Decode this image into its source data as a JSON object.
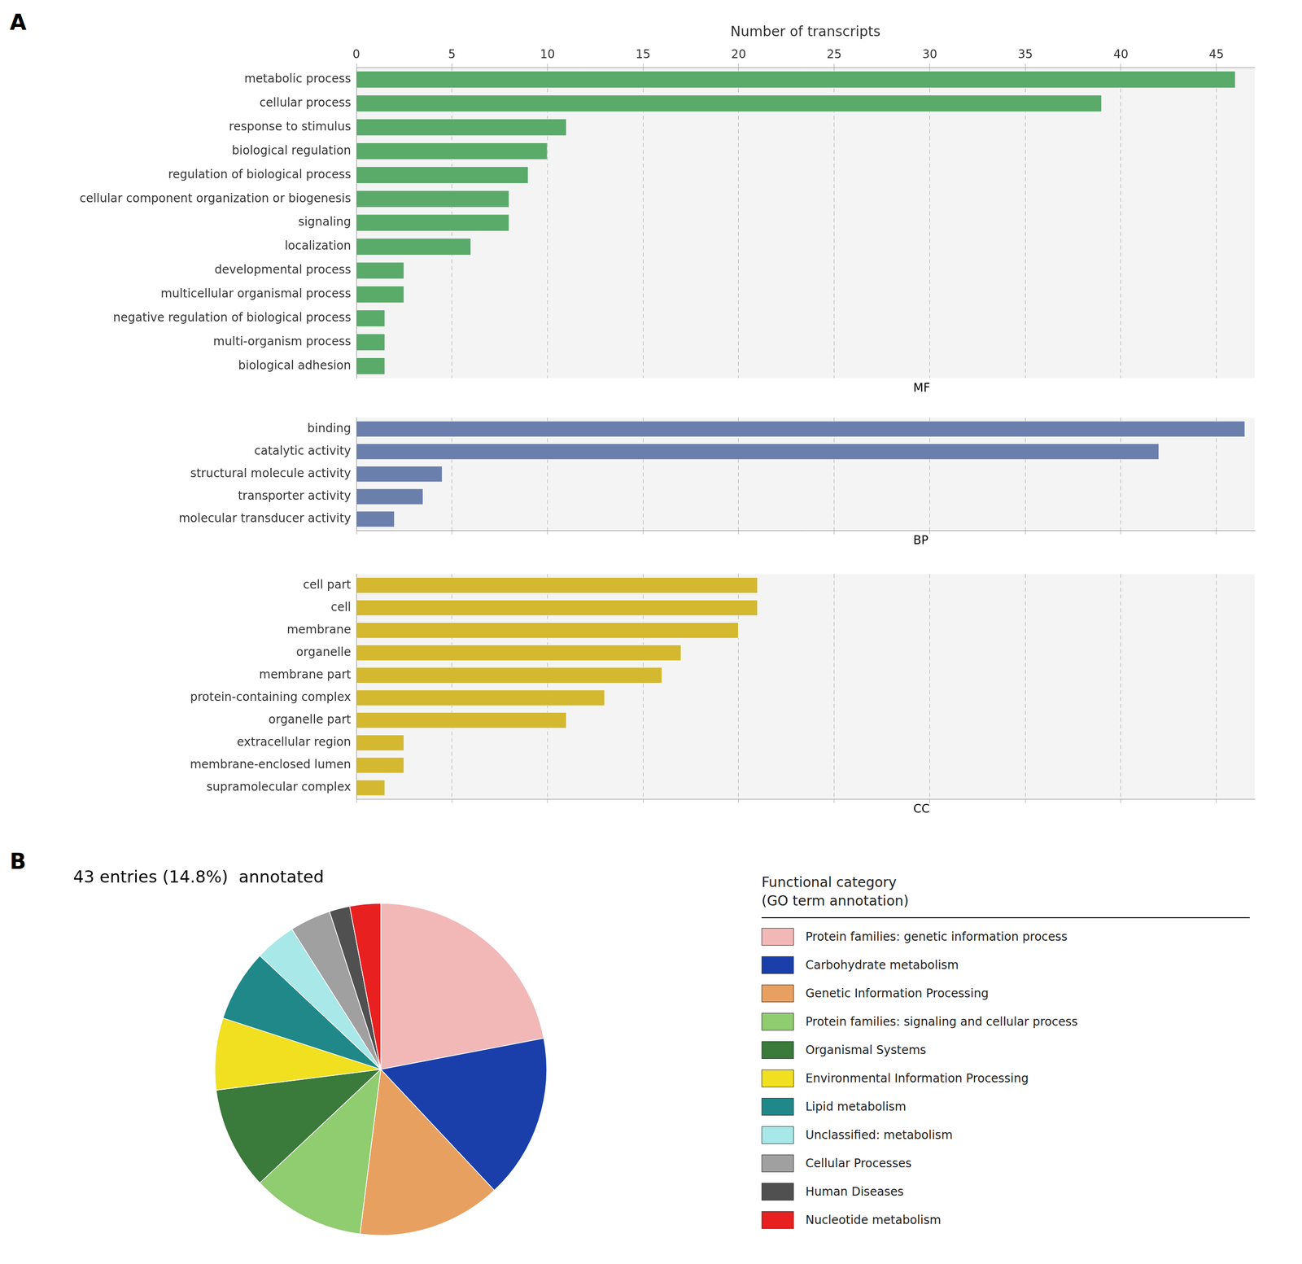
{
  "chart_data": [
    {
      "type": "bar",
      "orientation": "horizontal",
      "panel": "A",
      "xlabel": "Number of transcripts",
      "annotation": "MF",
      "categories": [
        "metabolic process",
        "cellular process",
        "response to stimulus",
        "biological regulation",
        "regulation of biological process",
        "cellular component organization or biogenesis",
        "signaling",
        "localization",
        "developmental process",
        "multicellular organismal process",
        "negative regulation of biological process",
        "multi-organism process",
        "biological adhesion"
      ],
      "values": [
        46,
        39,
        11,
        10,
        9,
        8,
        8,
        6,
        2.5,
        2.5,
        1.5,
        1.5,
        1.5
      ],
      "color": "#5aaa6a",
      "xlim": [
        0,
        47
      ],
      "xticks": [
        0,
        5,
        10,
        15,
        20,
        25,
        30,
        35,
        40,
        45
      ],
      "grid": true
    },
    {
      "type": "bar",
      "orientation": "horizontal",
      "annotation": "BP",
      "categories": [
        "binding",
        "catalytic activity",
        "structural molecule activity",
        "transporter activity",
        "molecular transducer activity"
      ],
      "values": [
        46.5,
        42,
        4.5,
        3.5,
        2
      ],
      "color": "#6b7fad",
      "xlim": [
        0,
        47
      ],
      "xticks": [
        0,
        5,
        10,
        15,
        20,
        25,
        30,
        35,
        40,
        45
      ],
      "grid": true,
      "tick_labels": "y"
    },
    {
      "type": "bar",
      "orientation": "horizontal",
      "annotation": "CC",
      "categories": [
        "cell part",
        "cell",
        "membrane",
        "organelle",
        "membrane part",
        "protein-containing complex",
        "organelle part",
        "extracellular region",
        "membrane-enclosed lumen",
        "supramolecular complex"
      ],
      "values": [
        21,
        21,
        20,
        17,
        16,
        13,
        11,
        2.5,
        2.5,
        1.5
      ],
      "color": "#d4b830",
      "xlim": [
        0,
        47
      ],
      "xticks": [
        0,
        5,
        10,
        15,
        20,
        25,
        30,
        35,
        40,
        45
      ],
      "grid": true,
      "tick_labels": "y"
    },
    {
      "type": "pie",
      "panel": "B",
      "title": "43 entries (14.8%)  annotated",
      "legend": "right",
      "legend_title": [
        "Functional category",
        "(GO term annotation)"
      ],
      "categories": [
        "Protein families: genetic information process",
        "Carbohydrate metabolism",
        "Genetic Information Processing",
        "Protein families: signaling and cellular process",
        "Organismal Systems",
        "Environmental Information Processing",
        "Lipid metabolism",
        "Unclassified: metabolism",
        "Cellular Processes",
        "Human Diseases",
        "Nucleotide metabolism"
      ],
      "values": [
        22,
        16,
        14,
        11,
        10,
        7,
        7,
        4,
        4,
        2,
        3
      ],
      "colors": [
        "#f2b8b8",
        "#1a3faa",
        "#e8a060",
        "#90cc70",
        "#3a7a3a",
        "#f0e020",
        "#208888",
        "#a8e8e8",
        "#a0a0a0",
        "#505050",
        "#e82020"
      ]
    }
  ]
}
